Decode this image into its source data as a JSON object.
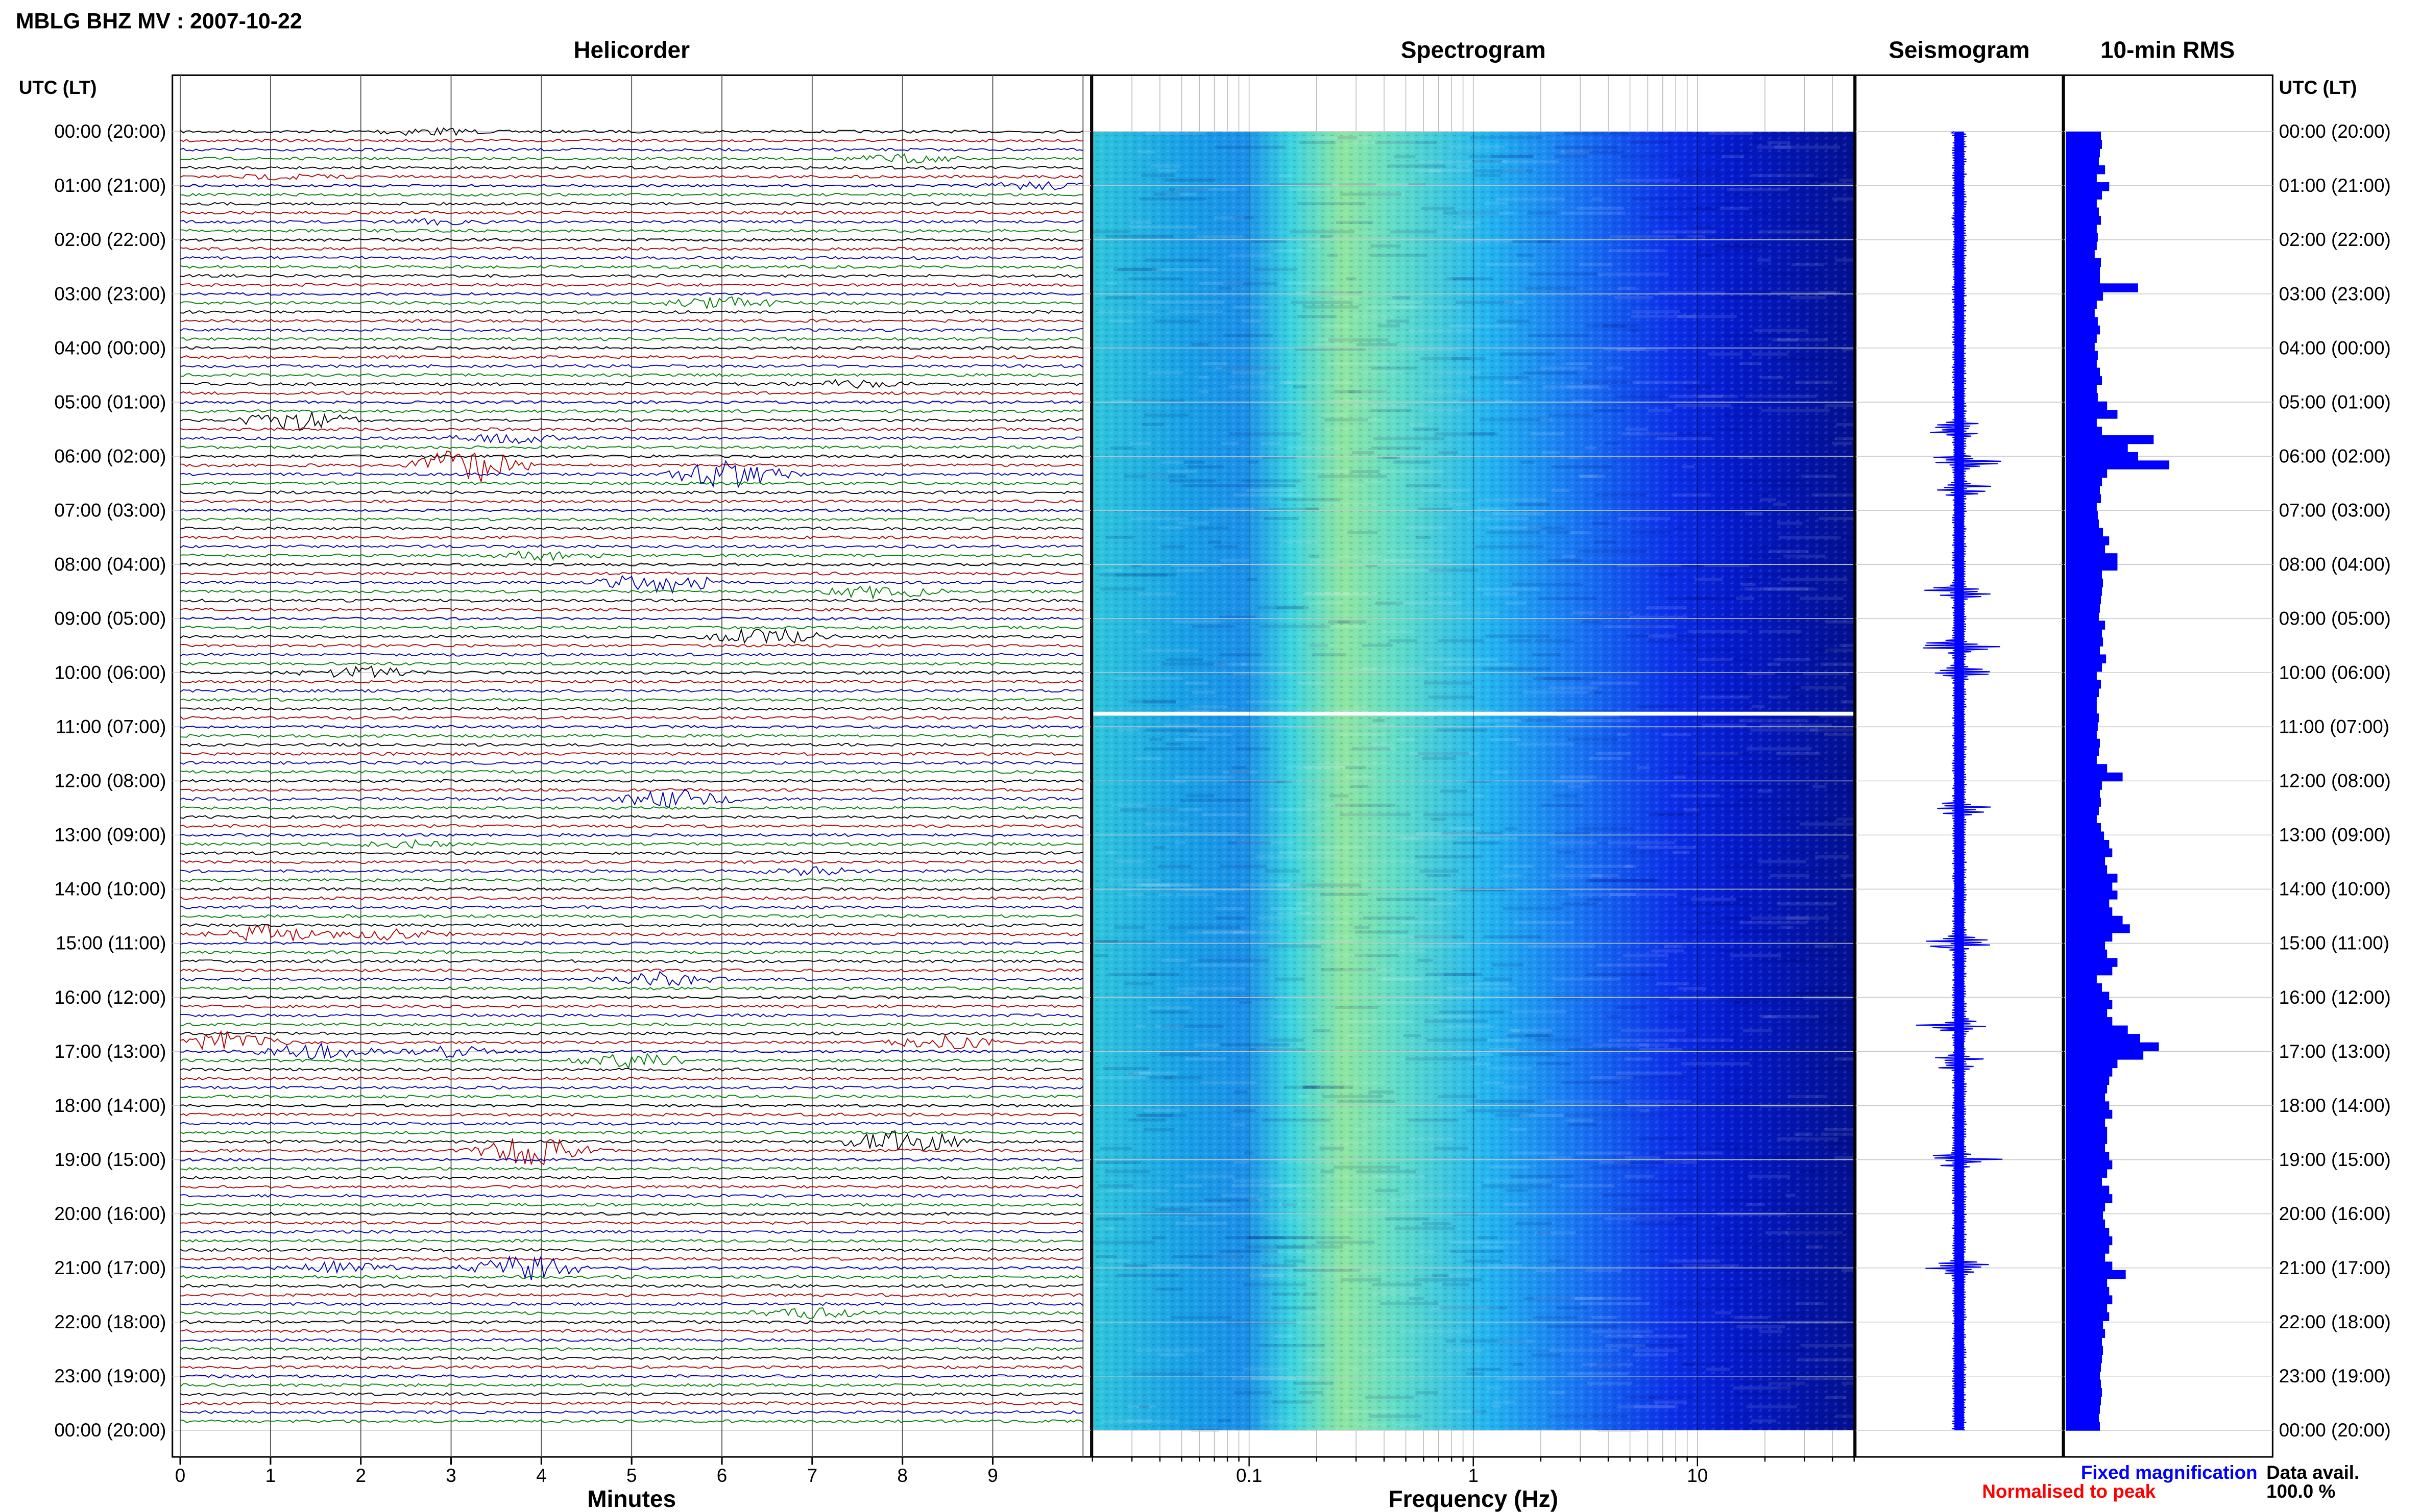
{
  "header": {
    "title": "MBLG BHZ MV : 2007-10-22",
    "utc_left": "UTC (LT)",
    "utc_right": "UTC (LT)",
    "helicorder_title": "Helicorder",
    "spectrogram_title": "Spectrogram",
    "seismogram_title": "Seismogram",
    "rms_title": "10-min RMS"
  },
  "chart_data": [
    {
      "type": "line",
      "name": "helicorder",
      "title": "Helicorder",
      "xlabel": "Minutes",
      "ylabel": "",
      "x_ticks": [
        "0",
        "1",
        "2",
        "3",
        "4",
        "5",
        "6",
        "7",
        "8",
        "9"
      ],
      "xlim": [
        0,
        10
      ],
      "row_minutes": 10,
      "trace_colors": [
        "#000000",
        "#b00000",
        "#0000b0",
        "#008000"
      ],
      "time_labels": [
        "00:00 (20:00)",
        "01:00 (21:00)",
        "02:00 (22:00)",
        "03:00 (23:00)",
        "04:00 (00:00)",
        "05:00 (01:00)",
        "06:00 (02:00)",
        "07:00 (03:00)",
        "08:00 (04:00)",
        "09:00 (05:00)",
        "10:00 (06:00)",
        "11:00 (07:00)",
        "12:00 (08:00)",
        "13:00 (09:00)",
        "14:00 (10:00)",
        "15:00 (11:00)",
        "16:00 (12:00)",
        "17:00 (13:00)",
        "18:00 (14:00)",
        "19:00 (15:00)",
        "20:00 (16:00)",
        "21:00 (17:00)",
        "22:00 (18:00)",
        "23:00 (19:00)",
        "00:00 (20:00)"
      ],
      "events": [
        {
          "hour": 0.0,
          "minute": 2.7,
          "amp": 0.6
        },
        {
          "hour": 0.5,
          "minute": 8.0,
          "amp": 0.6
        },
        {
          "hour": 0.8,
          "minute": 1.2,
          "amp": 0.4
        },
        {
          "hour": 1.0,
          "minute": 9.5,
          "amp": 0.6
        },
        {
          "hour": 1.6,
          "minute": 2.9,
          "amp": 0.4
        },
        {
          "hour": 3.1,
          "minute": 6.0,
          "amp": 1.0
        },
        {
          "hour": 4.6,
          "minute": 7.4,
          "amp": 0.6
        },
        {
          "hour": 5.4,
          "minute": 1.3,
          "amp": 1.5
        },
        {
          "hour": 5.6,
          "minute": 3.6,
          "amp": 0.8
        },
        {
          "hour": 6.2,
          "minute": 3.2,
          "amp": 3.0
        },
        {
          "hour": 6.4,
          "minute": 6.1,
          "amp": 2.5
        },
        {
          "hour": 7.8,
          "minute": 4.0,
          "amp": 0.7
        },
        {
          "hour": 8.3,
          "minute": 5.3,
          "amp": 2.0
        },
        {
          "hour": 8.5,
          "minute": 7.8,
          "amp": 1.2
        },
        {
          "hour": 9.3,
          "minute": 6.5,
          "amp": 1.4
        },
        {
          "hour": 10.0,
          "minute": 2.0,
          "amp": 1.0
        },
        {
          "hour": 12.4,
          "minute": 5.5,
          "amp": 1.6
        },
        {
          "hour": 13.1,
          "minute": 2.5,
          "amp": 0.5
        },
        {
          "hour": 13.6,
          "minute": 7.0,
          "amp": 0.6
        },
        {
          "hour": 14.8,
          "minute": 1.0,
          "amp": 1.4
        },
        {
          "hour": 14.8,
          "minute": 2.3,
          "amp": 0.8
        },
        {
          "hour": 15.7,
          "minute": 5.3,
          "amp": 1.0
        },
        {
          "hour": 16.8,
          "minute": 0.5,
          "amp": 1.6
        },
        {
          "hour": 16.8,
          "minute": 8.5,
          "amp": 1.0
        },
        {
          "hour": 17.0,
          "minute": 1.5,
          "amp": 1.3
        },
        {
          "hour": 17.0,
          "minute": 3.0,
          "amp": 0.9
        },
        {
          "hour": 17.1,
          "minute": 5.0,
          "amp": 1.2
        },
        {
          "hour": 18.6,
          "minute": 8.0,
          "amp": 2.3
        },
        {
          "hour": 18.8,
          "minute": 3.9,
          "amp": 3.0
        },
        {
          "hour": 21.0,
          "minute": 1.8,
          "amp": 1.0
        },
        {
          "hour": 21.0,
          "minute": 3.8,
          "amp": 2.2
        },
        {
          "hour": 21.8,
          "minute": 7.0,
          "amp": 0.7
        }
      ]
    },
    {
      "type": "heatmap",
      "name": "spectrogram",
      "title": "Spectrogram",
      "xlabel": "Frequency (Hz)",
      "x_scale": "log",
      "xlim": [
        0.02,
        50
      ],
      "x_ticks": [
        0.1,
        1,
        10
      ],
      "x_tick_labels": [
        "0.1",
        "1",
        "10"
      ],
      "ylim_hours": [
        0,
        24
      ],
      "peak_frequency_hz": 0.3,
      "gap_hour": 10.75,
      "colormap": [
        "#00007f",
        "#0000ff",
        "#007fff",
        "#00ffff",
        "#7fff7f"
      ]
    },
    {
      "type": "line",
      "name": "seismogram",
      "title": "Seismogram",
      "color": "#0000ff",
      "events_hours": [
        5.5,
        6.1,
        6.6,
        8.5,
        9.5,
        10.0,
        12.5,
        15.0,
        16.5,
        17.2,
        19.0,
        21.0
      ]
    },
    {
      "type": "bar",
      "name": "10-min-rms",
      "title": "10-min RMS",
      "color": "#0000ff",
      "x_ticks_hours": [
        0,
        1,
        2,
        3,
        4,
        5,
        6,
        7,
        8,
        9,
        10,
        11,
        12,
        13,
        14,
        15,
        16,
        17,
        18,
        19,
        20,
        21,
        22,
        23,
        24
      ],
      "values": [
        0.34,
        0.35,
        0.33,
        0.32,
        0.38,
        0.3,
        0.42,
        0.35,
        0.3,
        0.32,
        0.34,
        0.3,
        0.31,
        0.3,
        0.28,
        0.34,
        0.33,
        0.33,
        0.7,
        0.36,
        0.3,
        0.28,
        0.31,
        0.33,
        0.3,
        0.28,
        0.31,
        0.3,
        0.33,
        0.35,
        0.3,
        0.31,
        0.4,
        0.5,
        0.3,
        0.35,
        0.85,
        0.6,
        0.7,
        1.0,
        0.4,
        0.35,
        0.33,
        0.34,
        0.3,
        0.31,
        0.32,
        0.36,
        0.42,
        0.38,
        0.5,
        0.5,
        0.35,
        0.36,
        0.35,
        0.34,
        0.33,
        0.32,
        0.38,
        0.35,
        0.36,
        0.33,
        0.39,
        0.35,
        0.3,
        0.34,
        0.32,
        0.3,
        0.3,
        0.32,
        0.31,
        0.3,
        0.33,
        0.32,
        0.3,
        0.4,
        0.55,
        0.35,
        0.33,
        0.34,
        0.32,
        0.3,
        0.34,
        0.37,
        0.42,
        0.45,
        0.38,
        0.4,
        0.5,
        0.45,
        0.5,
        0.42,
        0.45,
        0.55,
        0.62,
        0.45,
        0.38,
        0.4,
        0.5,
        0.45,
        0.3,
        0.35,
        0.42,
        0.45,
        0.4,
        0.45,
        0.6,
        0.72,
        0.9,
        0.75,
        0.5,
        0.45,
        0.42,
        0.4,
        0.38,
        0.42,
        0.45,
        0.38,
        0.4,
        0.4,
        0.38,
        0.42,
        0.45,
        0.4,
        0.35,
        0.42,
        0.45,
        0.38,
        0.36,
        0.38,
        0.42,
        0.45,
        0.42,
        0.38,
        0.45,
        0.58,
        0.4,
        0.42,
        0.45,
        0.4,
        0.42,
        0.36,
        0.38,
        0.35,
        0.36,
        0.35,
        0.34,
        0.33,
        0.34,
        0.35,
        0.34,
        0.33,
        0.32,
        0.33
      ]
    }
  ],
  "footer": {
    "minutes_label": "Minutes",
    "frequency_label": "Frequency (Hz)",
    "legend_fixed": "Fixed magnification",
    "legend_normalised": "Normalised to peak",
    "data_avail_label": "Data avail.",
    "data_avail_value": "100.0 %",
    "legend_fixed_color": "#0000ff",
    "legend_normalised_color": "#ff0000"
  }
}
